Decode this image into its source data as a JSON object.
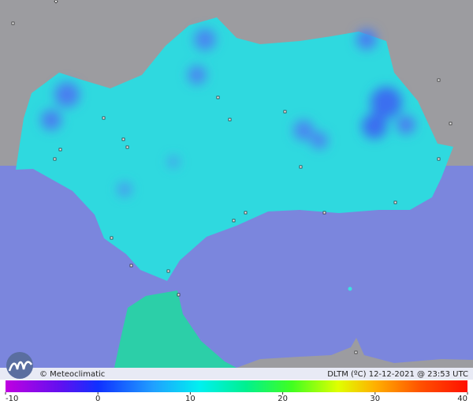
{
  "footer": {
    "credit": "© Meteoclimatic",
    "caption": "DLTM (ºC)  12-12-2021 @ 23:53 UTC"
  },
  "legend": {
    "ticks": [
      -10,
      0,
      10,
      20,
      30,
      40
    ]
  }
}
